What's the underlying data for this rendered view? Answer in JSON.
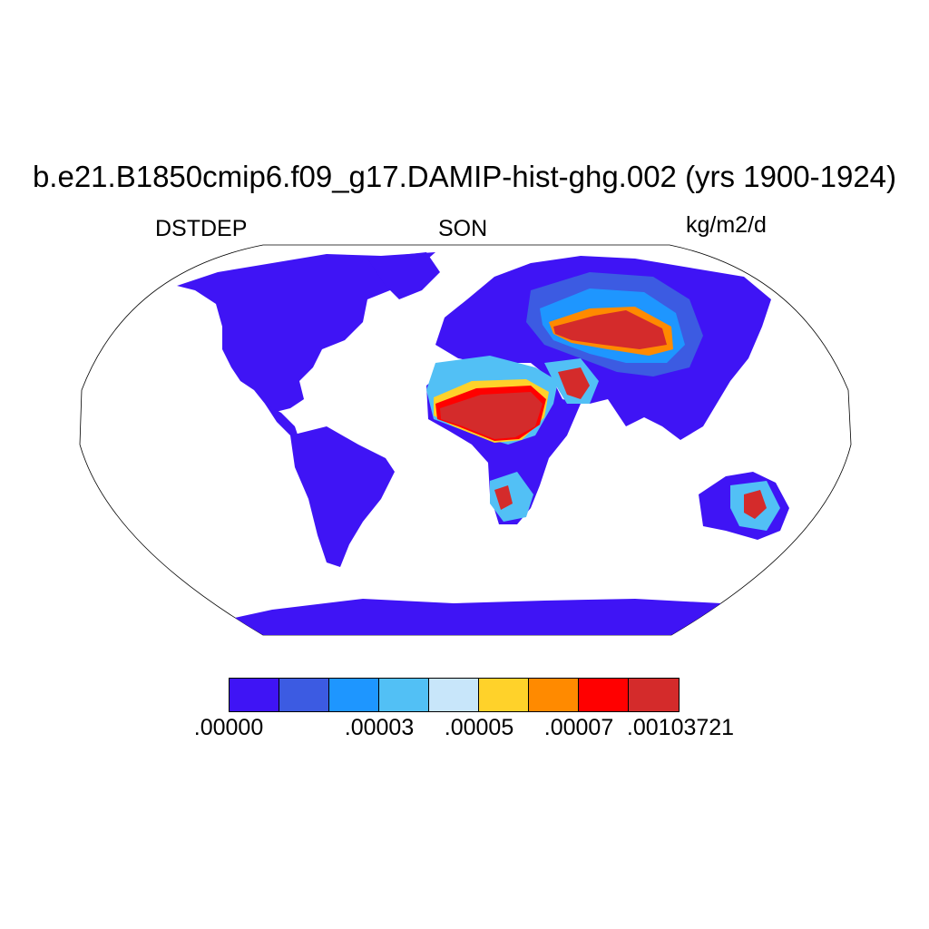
{
  "title": "b.e21.B1850cmip6.f09_g17.DAMIP-hist-ghg.002 (yrs 1900-1924)",
  "variable": "DSTDEP",
  "season": "SON",
  "units": "kg/m2/d",
  "colorbar": {
    "colors": [
      "#3f14f5",
      "#3c5be2",
      "#1e96ff",
      "#52c0f5",
      "#c8e6fa",
      "#ffd22a",
      "#ff8a00",
      "#ff0000",
      "#d42b2b"
    ],
    "tick_labels": [
      ".00000",
      ".00003",
      ".00005",
      ".00007",
      ".00103721"
    ]
  },
  "map": {
    "projection": "Robinson",
    "ocean_color": "#ffffff",
    "land_base_color": "#3f14f5"
  }
}
